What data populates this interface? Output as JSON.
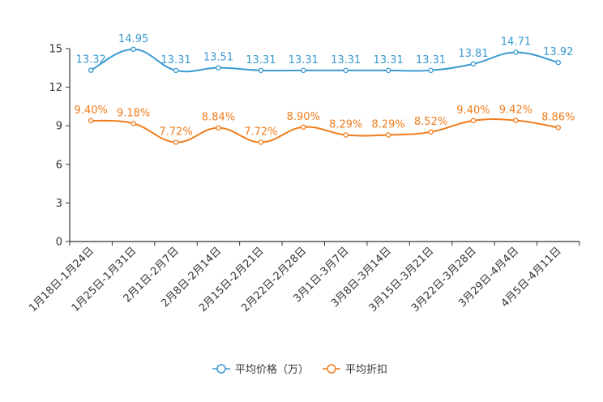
{
  "chart_data": {
    "type": "line",
    "title": "",
    "xlabel": "",
    "ylabel": "",
    "ylim": [
      0,
      15
    ],
    "yticks": [
      "0",
      "3",
      "6",
      "9",
      "12",
      "15"
    ],
    "grid": false,
    "legend_position": "bottom-center",
    "categories": [
      "1月18日-1月24日",
      "1月25日-1月31日",
      "2月1日-2月7日",
      "2月8日-2月14日",
      "2月15日-2月21日",
      "2月22日-2月28日",
      "3月1日-3月7日",
      "3月8日-3月14日",
      "3月15日-3月21日",
      "3月22日-3月28日",
      "3月29日-4月4日",
      "4月5日-4月11日"
    ],
    "series": [
      {
        "name": "平均价格（万）",
        "color": "#3a9ad1",
        "values": [
          13.32,
          14.95,
          13.31,
          13.51,
          13.31,
          13.31,
          13.31,
          13.31,
          13.31,
          13.81,
          14.71,
          13.92
        ],
        "labels": [
          "13.32",
          "14.95",
          "13.31",
          "13.51",
          "13.31",
          "13.31",
          "13.31",
          "13.31",
          "13.31",
          "13.81",
          "14.71",
          "13.92"
        ]
      },
      {
        "name": "平均折扣",
        "color": "#f07c1b",
        "values": [
          9.4,
          9.18,
          7.72,
          8.84,
          7.72,
          8.9,
          8.29,
          8.29,
          8.52,
          9.4,
          9.42,
          8.86
        ],
        "labels": [
          "9.40%",
          "9.18%",
          "7.72%",
          "8.84%",
          "7.72%",
          "8.90%",
          "8.29%",
          "8.29%",
          "8.52%",
          "9.40%",
          "9.42%",
          "8.86%"
        ]
      }
    ]
  }
}
